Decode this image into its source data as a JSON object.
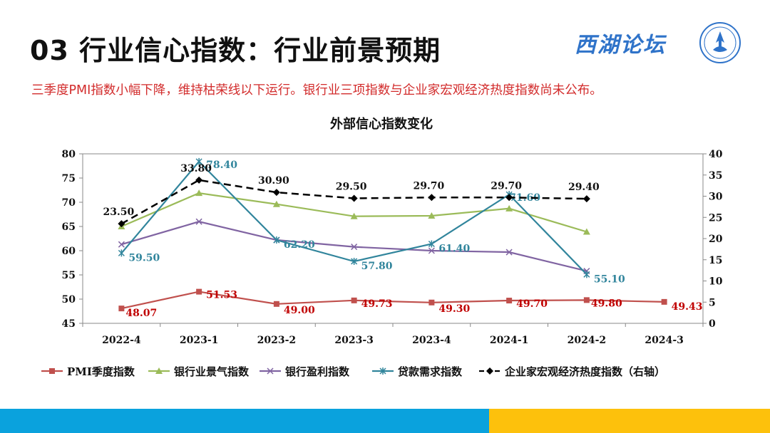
{
  "page": {
    "title": "03 行业信心指数：行业前景预期",
    "brand": "西湖论坛",
    "subtitle": "三季度PMI指数小幅下降，维持枯荣线以下运行。银行业三项指数与企业家宏观经济热度指数尚未公布。"
  },
  "colors": {
    "title": "#111111",
    "subtitle": "#d22b2b",
    "brand": "#2f73c9",
    "footer_blue": "#0aa2dd",
    "footer_yellow": "#fdc10c"
  },
  "chart_data": {
    "type": "line",
    "title": "外部信心指数变化",
    "categories": [
      "2022-4",
      "2023-1",
      "2023-2",
      "2023-3",
      "2023-4",
      "2024-1",
      "2024-2",
      "2024-3"
    ],
    "left_axis": {
      "ylim": [
        45,
        80
      ],
      "ticks": [
        45,
        50,
        55,
        60,
        65,
        70,
        75,
        80
      ]
    },
    "right_axis": {
      "ylim": [
        0,
        40
      ],
      "ticks": [
        0,
        5,
        10,
        15,
        20,
        25,
        30,
        35,
        40
      ]
    },
    "legend_position": "bottom",
    "series": [
      {
        "name": "PMI季度指数",
        "axis": "left",
        "color": "#c0504d",
        "marker": "square",
        "dash": false,
        "values": [
          48.07,
          51.53,
          49.0,
          49.73,
          49.3,
          49.7,
          49.8,
          49.43
        ],
        "labels": [
          "48.07",
          "51.53",
          "49.00",
          "49.73",
          "49.30",
          "49.70",
          "49.80",
          "49.43"
        ]
      },
      {
        "name": "银行业景气指数",
        "axis": "left",
        "color": "#9bbb59",
        "marker": "triangle",
        "dash": false,
        "values": [
          65.0,
          71.9,
          69.6,
          67.1,
          67.2,
          68.7,
          63.9,
          null
        ],
        "labels": []
      },
      {
        "name": "银行盈利指数",
        "axis": "left",
        "color": "#8064a2",
        "marker": "x",
        "dash": false,
        "values": [
          61.3,
          66.0,
          62.2,
          60.8,
          60.0,
          59.7,
          55.8,
          null
        ],
        "labels": []
      },
      {
        "name": "贷款需求指数",
        "axis": "left",
        "color": "#31859c",
        "marker": "star",
        "dash": false,
        "values": [
          59.5,
          78.4,
          62.2,
          57.8,
          61.4,
          71.6,
          55.1,
          null
        ],
        "labels": [
          "59.50",
          "78.40",
          "62.20",
          "57.80",
          "61.40",
          "71.60",
          "55.10",
          ""
        ]
      },
      {
        "name": "企业家宏观经济热度指数（右轴）",
        "axis": "right",
        "color": "#000000",
        "marker": "diamond",
        "dash": true,
        "values": [
          23.5,
          33.8,
          30.9,
          29.5,
          29.7,
          29.7,
          29.4,
          null
        ],
        "labels": [
          "23.50",
          "33.80",
          "30.90",
          "29.50",
          "29.70",
          "29.70",
          "29.40",
          ""
        ]
      }
    ]
  }
}
